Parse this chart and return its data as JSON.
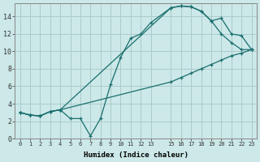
{
  "xlabel": "Humidex (Indice chaleur)",
  "background_color": "#cce8e8",
  "grid_color": "#aacccc",
  "line_color": "#1a6e6e",
  "xlim": [
    -0.5,
    23.5
  ],
  "ylim": [
    0,
    15.5
  ],
  "xtick_vals": [
    0,
    1,
    2,
    3,
    4,
    5,
    6,
    7,
    8,
    9,
    10,
    11,
    12,
    13,
    15,
    16,
    17,
    18,
    19,
    20,
    21,
    22,
    23
  ],
  "ytick_vals": [
    0,
    2,
    4,
    6,
    8,
    10,
    12,
    14
  ],
  "line1_x": [
    0,
    1,
    2,
    3,
    4,
    5,
    6,
    7,
    8,
    9,
    10,
    11,
    12,
    13,
    15,
    16,
    17,
    18,
    19,
    20,
    21,
    22,
    23
  ],
  "line1_y": [
    3.0,
    2.7,
    2.6,
    3.1,
    3.3,
    2.3,
    2.3,
    0.3,
    2.3,
    6.2,
    9.3,
    11.5,
    12.0,
    13.3,
    15.0,
    15.2,
    15.1,
    14.6,
    13.5,
    12.0,
    11.0,
    10.2,
    10.2
  ],
  "line2_x": [
    0,
    1,
    2,
    3,
    4,
    15,
    16,
    17,
    18,
    19,
    20,
    21,
    22,
    23
  ],
  "line2_y": [
    3.0,
    2.7,
    2.6,
    3.1,
    3.3,
    15.0,
    15.2,
    15.1,
    14.6,
    13.5,
    13.8,
    12.0,
    11.8,
    10.2
  ],
  "line3_x": [
    0,
    1,
    2,
    3,
    4,
    15,
    16,
    17,
    18,
    19,
    20,
    21,
    22,
    23
  ],
  "line3_y": [
    3.0,
    2.7,
    2.6,
    3.1,
    3.3,
    6.5,
    7.0,
    7.5,
    8.0,
    8.5,
    9.0,
    9.5,
    9.8,
    10.2
  ]
}
